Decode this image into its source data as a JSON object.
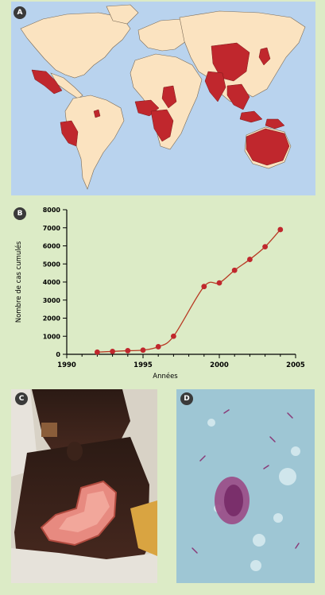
{
  "panels": {
    "a": "A",
    "b": "B",
    "c": "C",
    "d": "D"
  },
  "colors": {
    "ocean": "#b9d3ee",
    "land": "#fbe3c0",
    "affected": "#c0272d",
    "line": "#b83a24",
    "point": "#c0272d",
    "background": "#dcebc6"
  },
  "map": {
    "affected_regions": [
      "Mexico",
      "Peru",
      "French Guiana",
      "West Africa",
      "Central Africa",
      "China",
      "Japan",
      "India",
      "Southeast Asia",
      "Papua New Guinea",
      "Australia"
    ]
  },
  "chart_data": {
    "type": "line",
    "x": [
      1992,
      1993,
      1994,
      1995,
      1996,
      1997,
      1999,
      2000,
      2001,
      2002,
      2003,
      2004
    ],
    "y": [
      120,
      160,
      200,
      230,
      420,
      1000,
      3750,
      3950,
      4650,
      5250,
      5950,
      6900
    ],
    "xlabel": "Années",
    "ylabel": "Nombre de cas cumulés",
    "xlim": [
      1990,
      2005
    ],
    "ylim": [
      0,
      8000
    ],
    "xticks": [
      "1990",
      "1995",
      "2000",
      "2005"
    ],
    "yticks": [
      "0",
      "1000",
      "2000",
      "3000",
      "4000",
      "5000",
      "6000",
      "7000",
      "8000"
    ],
    "grid": false
  }
}
